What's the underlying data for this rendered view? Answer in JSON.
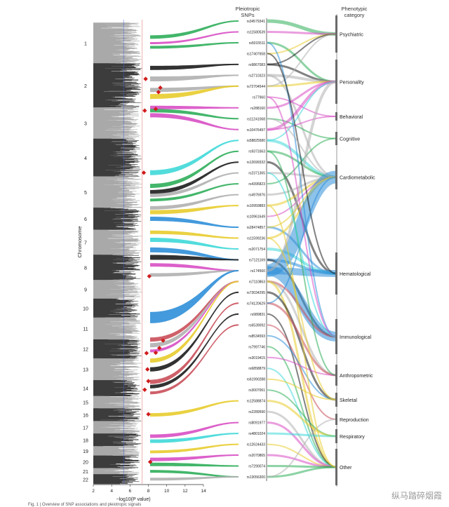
{
  "header": {
    "snps_title_line1": "Pleiotropic",
    "snps_title_line2": "SNPs",
    "category_title_line1": "Phenotypic",
    "category_title_line2": "category"
  },
  "watermark": "纵马踏碎烟霞",
  "caption": "Fig. 1 | Overview of SNP associations and pleiotropic signals",
  "chart_data": {
    "type": "manhattan-alluvial",
    "xlabel": "−log10(P value)",
    "ylabel": "Chromosome",
    "xticks": [
      2,
      4,
      6,
      8,
      10,
      12,
      14
    ],
    "xlim": [
      2,
      14
    ],
    "threshold_lines": [
      {
        "value": 5.3,
        "color": "#3d5bd8"
      },
      {
        "value": 7.3,
        "color": "#e06060"
      }
    ],
    "chromosomes": [
      "1",
      "2",
      "3",
      "4",
      "5",
      "6",
      "7",
      "8",
      "9",
      "10",
      "11",
      "12",
      "13",
      "14",
      "15",
      "16",
      "17",
      "18",
      "19",
      "20",
      "21",
      "22"
    ],
    "chrom_spans": [
      [
        1,
        14
      ],
      [
        14,
        28
      ],
      [
        28,
        38
      ],
      [
        38,
        50
      ],
      [
        50,
        60
      ],
      [
        60,
        67
      ],
      [
        67,
        75
      ],
      [
        75,
        83
      ],
      [
        83,
        89
      ],
      [
        89,
        95
      ],
      [
        95,
        102
      ],
      [
        102,
        108
      ],
      [
        108,
        115
      ],
      [
        115,
        120
      ],
      [
        120,
        124
      ],
      [
        124,
        128
      ],
      [
        128,
        132
      ],
      [
        132,
        136
      ],
      [
        136,
        139
      ],
      [
        139,
        143
      ],
      [
        143,
        145
      ],
      [
        145,
        148
      ]
    ],
    "highlight_points": [
      {
        "chr": "2",
        "pos": 0.35,
        "value": 7.7
      },
      {
        "chr": "2",
        "pos": 0.55,
        "value": 9.3
      },
      {
        "chr": "2",
        "pos": 0.65,
        "value": 9.1
      },
      {
        "chr": "3",
        "pos": 0.05,
        "value": 8.8
      },
      {
        "chr": "3",
        "pos": 0.1,
        "value": 7.6
      },
      {
        "chr": "4",
        "pos": 0.9,
        "value": 7.5
      },
      {
        "chr": "8",
        "pos": 0.85,
        "value": 8.1
      },
      {
        "chr": "12",
        "pos": 0.05,
        "value": 9.6
      },
      {
        "chr": "12",
        "pos": 0.45,
        "value": 9.2
      },
      {
        "chr": "12",
        "pos": 0.7,
        "value": 8.8
      },
      {
        "chr": "12",
        "pos": 0.72,
        "value": 7.8
      },
      {
        "chr": "13",
        "pos": 0.5,
        "value": 7.9
      },
      {
        "chr": "14",
        "pos": 0.05,
        "value": 8.0
      },
      {
        "chr": "14",
        "pos": 0.6,
        "value": 7.6
      },
      {
        "chr": "16",
        "pos": 0.45,
        "value": 8.0
      },
      {
        "chr": "20",
        "pos": 0.5,
        "value": 8.2
      }
    ],
    "snps": [
      "rs34579341",
      "rs11580539",
      "rs5015511",
      "rs17407658",
      "rs9867083",
      "rs2710323",
      "rs72704544",
      "rs77960",
      "rs288160",
      "rs11241068",
      "rs10476497",
      "rs58825580",
      "rs9373363",
      "rs12699332",
      "rs2371365",
      "rs4395823",
      "rs4976976",
      "rs10959883",
      "rs10961649",
      "rs28474857",
      "rs11599236",
      "rs2071754",
      "rs7121169",
      "rs174560",
      "rs7110863",
      "rs73034295",
      "rs74120629",
      "rs989831",
      "rs6539092",
      "rs8534593",
      "rs7997746",
      "rs3019415",
      "rs6858879",
      "rs61990288",
      "rs3007061",
      "rs12588874",
      "rs2289590",
      "rs8091977",
      "rs4801024",
      "rs12624433",
      "rs2070865",
      "rs7290074",
      "rs13056300"
    ],
    "categories": [
      "Psychiatric",
      "Personality",
      "Behavioral",
      "Cognitive",
      "Cardiometabolic",
      "Hematological",
      "Immunological",
      "Anthropometric",
      "Skeletal",
      "Reproduction",
      "Respiratory",
      "Other"
    ],
    "category_spans": [
      [
        22,
        75
      ],
      [
        85,
        148
      ],
      [
        160,
        172
      ],
      [
        188,
        207
      ],
      [
        235,
        270
      ],
      [
        360,
        420
      ],
      [
        455,
        505
      ],
      [
        520,
        550
      ],
      [
        560,
        580
      ],
      [
        590,
        606
      ],
      [
        612,
        632
      ],
      [
        640,
        692
      ]
    ],
    "bundles": [
      {
        "chr": "1",
        "pos": 0.35,
        "snp": 0,
        "color": "#2fae5a",
        "w": 5
      },
      {
        "chr": "1",
        "pos": 0.5,
        "snp": 1,
        "color": "#d84fc4",
        "w": 3
      },
      {
        "chr": "1",
        "pos": 0.6,
        "snp": 2,
        "color": "#2fae5a",
        "w": 4
      },
      {
        "chr": "2",
        "pos": 0.1,
        "snp": 4,
        "color": "#1c1c1c",
        "w": 6
      },
      {
        "chr": "2",
        "pos": 0.35,
        "snp": 5,
        "color": "#b0b0b0",
        "w": 7
      },
      {
        "chr": "2",
        "pos": 0.6,
        "snp": 6,
        "color": "#b0b0b0",
        "w": 6
      },
      {
        "chr": "2",
        "pos": 0.75,
        "snp": 6,
        "color": "#e8cc2c",
        "w": 7
      },
      {
        "chr": "3",
        "pos": 0.0,
        "snp": 8,
        "color": "#d84fc4",
        "w": 5
      },
      {
        "chr": "3",
        "pos": 0.1,
        "snp": 9,
        "color": "#2fae5a",
        "w": 5
      },
      {
        "chr": "3",
        "pos": 0.25,
        "snp": 10,
        "color": "#d84fc4",
        "w": 6
      },
      {
        "chr": "4",
        "pos": 0.9,
        "snp": 11,
        "color": "#3fd8d8",
        "w": 7
      },
      {
        "chr": "5",
        "pos": 0.3,
        "snp": 12,
        "color": "#2fae5a",
        "w": 6
      },
      {
        "chr": "5",
        "pos": 0.5,
        "snp": 13,
        "color": "#1c1c1c",
        "w": 6
      },
      {
        "chr": "5",
        "pos": 0.6,
        "snp": 14,
        "color": "#b0b0b0",
        "w": 5
      },
      {
        "chr": "5",
        "pos": 0.75,
        "snp": 15,
        "color": "#2fae5a",
        "w": 4
      },
      {
        "chr": "6",
        "pos": 0.0,
        "snp": 16,
        "color": "#b0b0b0",
        "w": 5
      },
      {
        "chr": "6",
        "pos": 0.2,
        "snp": 17,
        "color": "#e8cc2c",
        "w": 6
      },
      {
        "chr": "6",
        "pos": 0.5,
        "snp": 19,
        "color": "#2f8fd8",
        "w": 6
      },
      {
        "chr": "7",
        "pos": 0.1,
        "snp": 20,
        "color": "#e8cc2c",
        "w": 5
      },
      {
        "chr": "7",
        "pos": 0.4,
        "snp": 21,
        "color": "#3fd8d8",
        "w": 6
      },
      {
        "chr": "7",
        "pos": 0.8,
        "snp": 22,
        "color": "#2f8fd8",
        "w": 7
      },
      {
        "chr": "8",
        "pos": 0.1,
        "snp": 22,
        "color": "#1c1c1c",
        "w": 7
      },
      {
        "chr": "8",
        "pos": 0.4,
        "snp": 23,
        "color": "#d84fc4",
        "w": 5
      },
      {
        "chr": "8",
        "pos": 0.8,
        "snp": 23,
        "color": "#b0b0b0",
        "w": 5
      },
      {
        "chr": "11",
        "pos": 0.0,
        "snp": 23,
        "color": "#2f8fd8",
        "w": 16
      },
      {
        "chr": "12",
        "pos": 0.0,
        "snp": 24,
        "color": "#c94f5a",
        "w": 6
      },
      {
        "chr": "12",
        "pos": 0.3,
        "snp": 24,
        "color": "#b0b0b0",
        "w": 6
      },
      {
        "chr": "12",
        "pos": 0.6,
        "snp": 24,
        "color": "#d84fc4",
        "w": 4
      },
      {
        "chr": "13",
        "pos": 0.1,
        "snp": 24,
        "color": "#e8cc2c",
        "w": 6
      },
      {
        "chr": "13",
        "pos": 0.5,
        "snp": 25,
        "color": "#1c1c1c",
        "w": 6
      },
      {
        "chr": "14",
        "pos": 0.1,
        "snp": 26,
        "color": "#c94f5a",
        "w": 6
      },
      {
        "chr": "14",
        "pos": 0.4,
        "snp": 27,
        "color": "#1c1c1c",
        "w": 5
      },
      {
        "chr": "14",
        "pos": 0.8,
        "snp": 28,
        "color": "#c94f5a",
        "w": 4
      },
      {
        "chr": "16",
        "pos": 0.5,
        "snp": 35,
        "color": "#e8cc2c",
        "w": 5
      },
      {
        "chr": "18",
        "pos": 0.2,
        "snp": 37,
        "color": "#d84fc4",
        "w": 5
      },
      {
        "chr": "18",
        "pos": 0.6,
        "snp": 38,
        "color": "#3fd8d8",
        "w": 5
      },
      {
        "chr": "19",
        "pos": 0.6,
        "snp": 39,
        "color": "#e8cc2c",
        "w": 4
      },
      {
        "chr": "20",
        "pos": 0.3,
        "snp": 40,
        "color": "#d84fc4",
        "w": 5
      },
      {
        "chr": "20",
        "pos": 0.7,
        "snp": 41,
        "color": "#2fae5a",
        "w": 5
      },
      {
        "chr": "21",
        "pos": 0.5,
        "snp": 42,
        "color": "#2fae5a",
        "w": 4
      },
      {
        "chr": "22",
        "pos": 0.5,
        "snp": 42,
        "color": "#b0b0b0",
        "w": 4
      }
    ],
    "links": [
      [
        0,
        0,
        "#2fae5a",
        5
      ],
      [
        1,
        0,
        "#d84fc4",
        3
      ],
      [
        2,
        1,
        "#2fae5a",
        3
      ],
      [
        3,
        0,
        "#e8cc2c",
        2
      ],
      [
        4,
        1,
        "#1c1c1c",
        3
      ],
      [
        4,
        0,
        "#1c1c1c",
        2
      ],
      [
        5,
        1,
        "#b0b0b0",
        4
      ],
      [
        5,
        4,
        "#b0b0b0",
        3
      ],
      [
        6,
        1,
        "#e8cc2c",
        3
      ],
      [
        6,
        0,
        "#b0b0b0",
        2
      ],
      [
        7,
        2,
        "#d84fc4",
        2
      ],
      [
        8,
        1,
        "#d84fc4",
        3
      ],
      [
        9,
        3,
        "#2fae5a",
        2
      ],
      [
        10,
        1,
        "#d84fc4",
        4
      ],
      [
        10,
        2,
        "#d84fc4",
        2
      ],
      [
        11,
        4,
        "#3fd8d8",
        4
      ],
      [
        11,
        1,
        "#3fd8d8",
        2
      ],
      [
        12,
        4,
        "#2fae5a",
        3
      ],
      [
        13,
        5,
        "#1c1c1c",
        3
      ],
      [
        14,
        4,
        "#b0b0b0",
        3
      ],
      [
        15,
        3,
        "#2fae5a",
        2
      ],
      [
        16,
        4,
        "#b0b0b0",
        3
      ],
      [
        17,
        4,
        "#e8cc2c",
        3
      ],
      [
        18,
        4,
        "#d84fc4",
        2
      ],
      [
        19,
        5,
        "#2f8fd8",
        3
      ],
      [
        20,
        4,
        "#e8cc2c",
        3
      ],
      [
        21,
        5,
        "#3fd8d8",
        4
      ],
      [
        22,
        5,
        "#2f8fd8",
        4
      ],
      [
        22,
        6,
        "#1c1c1c",
        3
      ],
      [
        23,
        4,
        "#2f8fd8",
        18
      ],
      [
        23,
        5,
        "#2f8fd8",
        10
      ],
      [
        23,
        6,
        "#2f8fd8",
        14
      ],
      [
        23,
        1,
        "#b0b0b0",
        4
      ],
      [
        24,
        6,
        "#c94f5a",
        3
      ],
      [
        24,
        7,
        "#b0b0b0",
        3
      ],
      [
        24,
        11,
        "#e8cc2c",
        3
      ],
      [
        25,
        8,
        "#1c1c1c",
        3
      ],
      [
        26,
        7,
        "#c94f5a",
        3
      ],
      [
        27,
        11,
        "#1c1c1c",
        2
      ],
      [
        28,
        9,
        "#c94f5a",
        2
      ],
      [
        29,
        8,
        "#2f8fd8",
        2
      ],
      [
        30,
        11,
        "#2fae5a",
        2
      ],
      [
        31,
        7,
        "#d84fc4",
        2
      ],
      [
        32,
        11,
        "#3fd8d8",
        2
      ],
      [
        33,
        8,
        "#e8cc2c",
        2
      ],
      [
        34,
        10,
        "#2fae5a",
        2
      ],
      [
        35,
        10,
        "#e8cc2c",
        3
      ],
      [
        36,
        11,
        "#b0b0b0",
        3
      ],
      [
        37,
        11,
        "#d84fc4",
        3
      ],
      [
        38,
        10,
        "#3fd8d8",
        3
      ],
      [
        39,
        11,
        "#e8cc2c",
        2
      ],
      [
        40,
        11,
        "#d84fc4",
        3
      ],
      [
        41,
        11,
        "#2fae5a",
        3
      ],
      [
        42,
        11,
        "#2fae5a",
        3
      ],
      [
        42,
        9,
        "#b0b0b0",
        2
      ],
      [
        2,
        6,
        "#2f8fd8",
        2
      ],
      [
        7,
        6,
        "#d84fc4",
        2
      ],
      [
        12,
        7,
        "#2fae5a",
        2
      ],
      [
        17,
        11,
        "#e8cc2c",
        2
      ],
      [
        20,
        8,
        "#e8cc2c",
        2
      ],
      [
        3,
        5,
        "#1c1c1c",
        2
      ],
      [
        9,
        4,
        "#b0b0b0",
        2
      ],
      [
        14,
        6,
        "#3fd8d8",
        2
      ],
      [
        19,
        4,
        "#e8cc2c",
        2
      ],
      [
        26,
        4,
        "#2f8fd8",
        2
      ]
    ]
  }
}
